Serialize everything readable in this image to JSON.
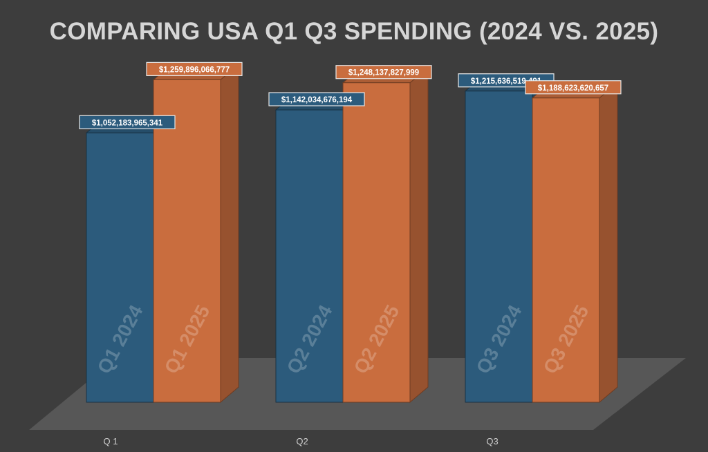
{
  "chart_data": {
    "type": "bar",
    "title": "COMPARING USA Q1 Q3 SPENDING (2024 VS. 2025)",
    "categories": [
      "Q 1",
      "Q2",
      "Q3"
    ],
    "series": [
      {
        "color": "#2c5b7c",
        "values": [
          1052183965341,
          1142034676194,
          1215636519491
        ],
        "value_labels": [
          "$1,052,183,965,341",
          "$1,142,034,676,194",
          "$1,215,636,519,491"
        ],
        "bar_captions": [
          "Q1 2024",
          "Q2 2024",
          "Q3 2024"
        ]
      },
      {
        "color": "#c96d3e",
        "values": [
          1259896066777,
          1248137827999,
          1188623620657
        ],
        "value_labels": [
          "$1,259,896,066,777",
          "$1,248,137,827,999",
          "$1,188,623,620,657"
        ],
        "bar_captions": [
          "Q1 2025",
          "Q2 2025",
          "Q3 2025"
        ]
      }
    ],
    "xlabel": "",
    "ylabel": "",
    "ylim": [
      0,
      1350000000000
    ],
    "grid": false,
    "legend": "none"
  }
}
